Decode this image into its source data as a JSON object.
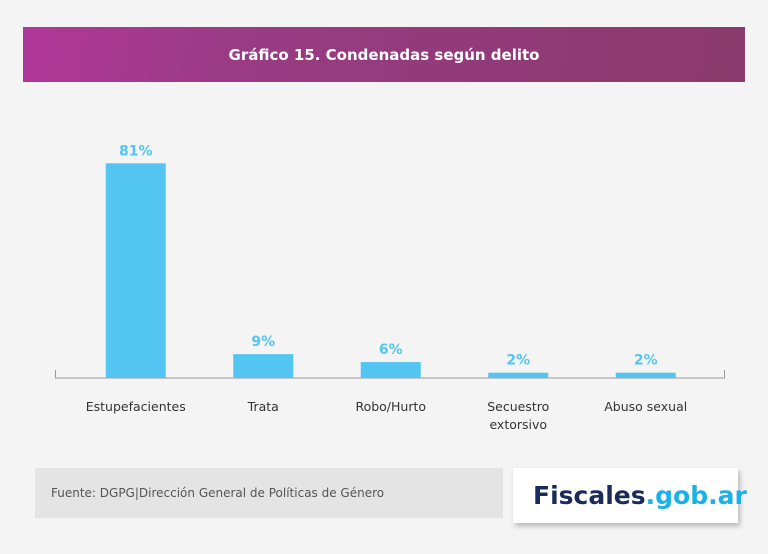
{
  "chart_data": {
    "type": "bar",
    "title": "Gráfico 15. Condenadas según delito",
    "categories": [
      "Estupefacientes",
      "Trata",
      "Robo/Hurto",
      "Secuestro extorsivo",
      "Abuso sexual"
    ],
    "values": [
      81,
      9,
      6,
      2,
      2
    ],
    "value_labels": [
      "81%",
      "9%",
      "6%",
      "2%",
      "2%"
    ],
    "color": "#52c5f2"
  },
  "footer": {
    "source": "Fuente: DGPG|Dirección General de Políticas de Género",
    "logo": {
      "name": "Fiscales",
      "domain": ".gob.ar"
    }
  }
}
